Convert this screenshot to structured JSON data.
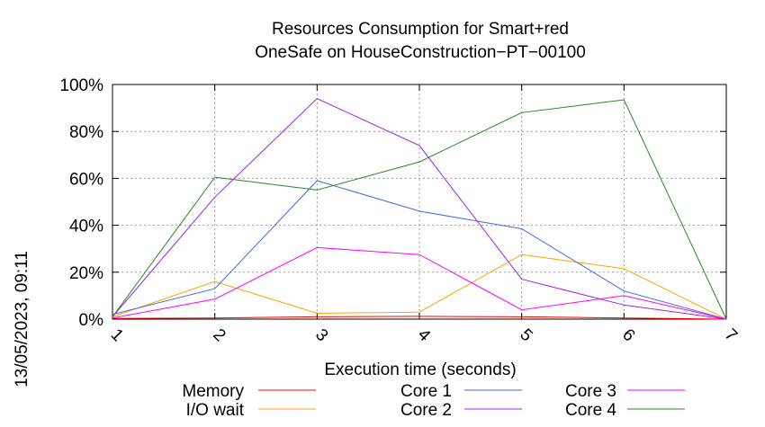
{
  "chart_data": {
    "type": "line",
    "title": "Resources Consumption for Smart+red",
    "subtitle": "OneSafe on HouseConstruction−PT−00100",
    "xlabel": "Execution time (seconds)",
    "ylabel": "",
    "side_label": "13/05/2023, 09:11",
    "x": [
      1,
      2,
      3,
      4,
      5,
      6,
      7
    ],
    "x_ticks": [
      "1",
      "2",
      "3",
      "4",
      "5",
      "6",
      "7"
    ],
    "xlim": [
      1,
      7
    ],
    "ylim": [
      0,
      100
    ],
    "y_ticks": [
      "0%",
      "20%",
      "40%",
      "60%",
      "80%",
      "100%"
    ],
    "y_tick_values": [
      0,
      20,
      40,
      60,
      80,
      100
    ],
    "grid": true,
    "legend_position": "bottom",
    "series": [
      {
        "name": "Memory",
        "color": "#ff0000",
        "values": [
          0.3,
          0.5,
          1.0,
          1.2,
          1.0,
          0.5,
          0
        ]
      },
      {
        "name": "I/O wait",
        "color": "#ffa500",
        "values": [
          1,
          16,
          2.5,
          3,
          27.5,
          21.5,
          0
        ]
      },
      {
        "name": "Core 1",
        "color": "#4169e1",
        "values": [
          2,
          13,
          59,
          46,
          38.5,
          12,
          0
        ]
      },
      {
        "name": "Core 2",
        "color": "#a020f0",
        "values": [
          1,
          52,
          94,
          74,
          17,
          6,
          0
        ]
      },
      {
        "name": "Core 3",
        "color": "#ff00ff",
        "values": [
          0.5,
          8.5,
          30.5,
          27.5,
          4,
          10,
          0
        ]
      },
      {
        "name": "Core 4",
        "color": "#228b22",
        "values": [
          1,
          60.5,
          55,
          67,
          88,
          93.5,
          0
        ]
      }
    ]
  }
}
